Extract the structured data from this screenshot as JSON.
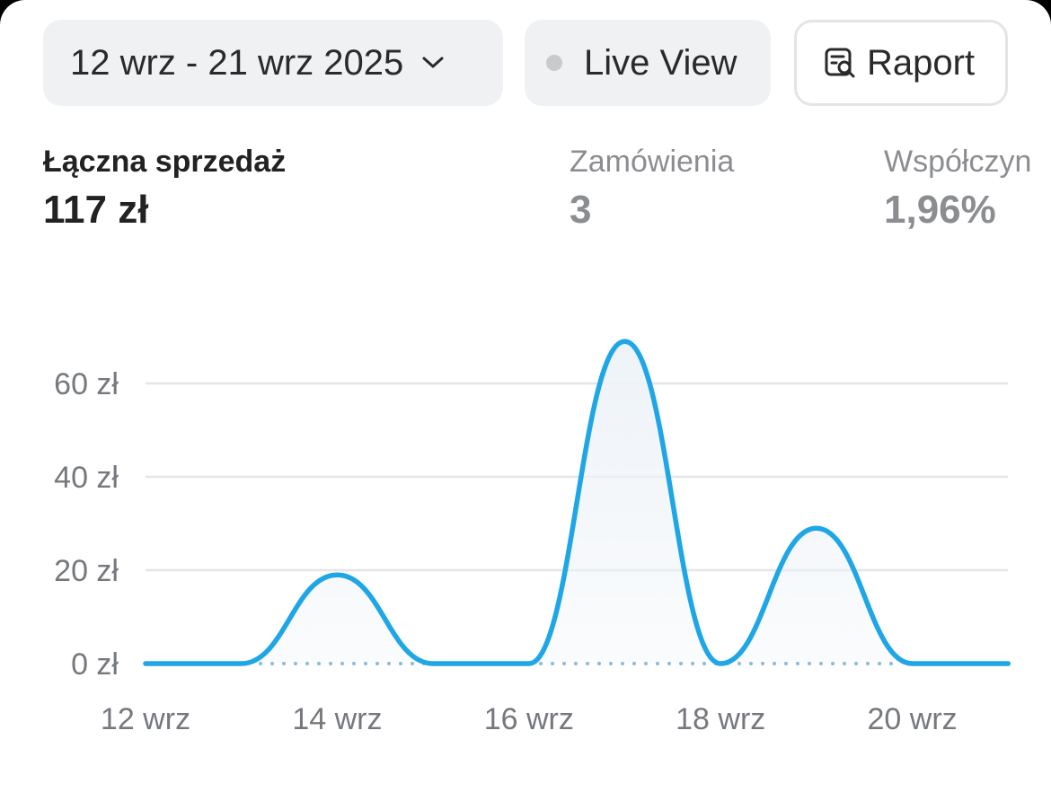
{
  "toolbar": {
    "date_range": "12 wrz - 21 wrz 2025",
    "live_view_label": "Live View",
    "report_label": "Raport"
  },
  "metrics": [
    {
      "label": "Łączna sprzedaż",
      "value": "117 zł"
    },
    {
      "label": "Zamówienia",
      "value": "3"
    },
    {
      "label": "Współczyn",
      "value": "1,96%"
    }
  ],
  "colors": {
    "line": "#1ea6e6",
    "fill": "#eef3f8",
    "grid": "#e4e5e8",
    "baseline_dots": "#8dbad6",
    "live_dot": "#c9cacc"
  },
  "chart_data": {
    "type": "line",
    "x": [
      "12 wrz",
      "13 wrz",
      "14 wrz",
      "15 wrz",
      "16 wrz",
      "17 wrz",
      "18 wrz",
      "19 wrz",
      "20 wrz",
      "21 wrz"
    ],
    "x_tick_labels": [
      "12 wrz",
      "14 wrz",
      "16 wrz",
      "18 wrz",
      "20 wrz"
    ],
    "y_tick_labels": [
      "0 zł",
      "20 zł",
      "40 zł",
      "60 zł"
    ],
    "y_ticks": [
      0,
      20,
      40,
      60
    ],
    "series": [
      {
        "values": [
          0,
          0,
          19,
          0,
          0,
          69,
          0,
          29,
          0,
          0
        ]
      }
    ],
    "ylim": [
      0,
      70
    ],
    "grid": true,
    "comparison_baseline": 0
  }
}
